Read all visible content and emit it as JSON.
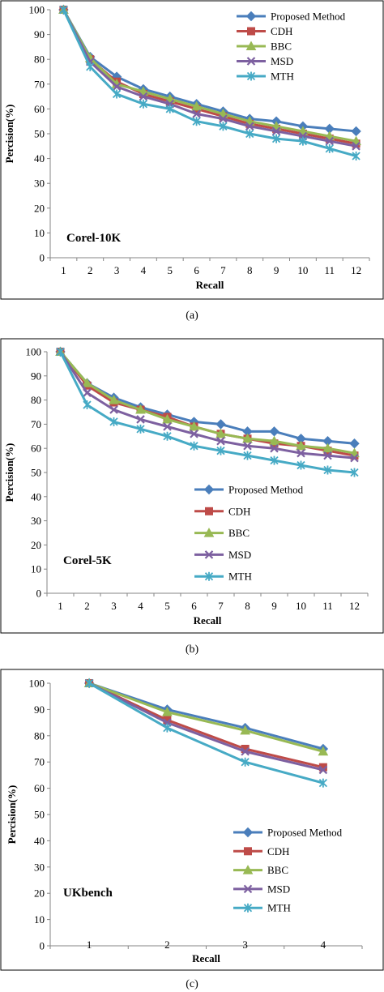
{
  "colors": {
    "Proposed Method": "#4a7ebb",
    "CDH": "#be4b48",
    "BBC": "#98b954",
    "MSD": "#7d60a0",
    "MTH": "#46aac5"
  },
  "markers": {
    "Proposed Method": "diamond",
    "CDH": "square",
    "BBC": "triangle",
    "MSD": "x-mark",
    "MTH": "asterisk"
  },
  "chart_data": [
    {
      "type": "line",
      "caption": "(a)",
      "inside_label": "Corel-10K",
      "xlabel": "Recall",
      "ylabel": "Percision(%)",
      "ylim": [
        0,
        100
      ],
      "yticks": [
        0,
        10,
        20,
        30,
        40,
        50,
        60,
        70,
        80,
        90,
        100
      ],
      "x": [
        1,
        2,
        3,
        4,
        5,
        6,
        7,
        8,
        9,
        10,
        11,
        12
      ],
      "legend_position": "top-right",
      "series": [
        {
          "name": "Proposed Method",
          "values": [
            100,
            81,
            73,
            68,
            65,
            62,
            59,
            56,
            55,
            53,
            52,
            51
          ]
        },
        {
          "name": "CDH",
          "values": [
            100,
            80,
            71,
            66,
            63,
            60,
            57,
            54,
            52,
            50,
            48,
            46
          ]
        },
        {
          "name": "BBC",
          "values": [
            100,
            80.5,
            70,
            67,
            64,
            61,
            58,
            55,
            53,
            51,
            49,
            47
          ]
        },
        {
          "name": "MSD",
          "values": [
            100,
            79,
            69,
            65,
            62,
            58,
            56,
            53,
            51,
            49,
            47,
            45
          ]
        },
        {
          "name": "MTH",
          "values": [
            100,
            77,
            66,
            62,
            60,
            55,
            53,
            50,
            48,
            47,
            44,
            41
          ]
        }
      ]
    },
    {
      "type": "line",
      "caption": "(b)",
      "inside_label": "Corel-5K",
      "xlabel": "Recall",
      "ylabel": "Percision(%)",
      "ylim": [
        0,
        100
      ],
      "yticks": [
        0,
        10,
        20,
        30,
        40,
        50,
        60,
        70,
        80,
        90,
        100
      ],
      "x": [
        1,
        2,
        3,
        4,
        5,
        6,
        7,
        8,
        9,
        10,
        11,
        12
      ],
      "legend_position": "bottom-right",
      "series": [
        {
          "name": "Proposed Method",
          "values": [
            100,
            87,
            81,
            77,
            74,
            71,
            70,
            67,
            67,
            64,
            63,
            62
          ]
        },
        {
          "name": "CDH",
          "values": [
            100,
            86,
            79,
            76,
            73,
            69,
            66,
            64,
            62,
            61,
            59,
            57
          ]
        },
        {
          "name": "BBC",
          "values": [
            100,
            87,
            80,
            76,
            72,
            69,
            66,
            64,
            63,
            61,
            60,
            58
          ]
        },
        {
          "name": "MSD",
          "values": [
            100,
            83,
            76,
            72,
            69,
            66,
            63,
            61,
            60,
            58,
            57,
            56
          ]
        },
        {
          "name": "MTH",
          "values": [
            100,
            78,
            71,
            68,
            65,
            61,
            59,
            57,
            55,
            53,
            51,
            50
          ]
        }
      ]
    },
    {
      "type": "line",
      "caption": "(c)",
      "inside_label": "UKbench",
      "xlabel": "Recall",
      "ylabel": "Percision(%)",
      "ylim": [
        0,
        100
      ],
      "yticks": [
        0,
        10,
        20,
        30,
        40,
        50,
        60,
        70,
        80,
        90,
        100
      ],
      "x": [
        1,
        2,
        3,
        4
      ],
      "legend_position": "bottom-right",
      "series": [
        {
          "name": "Proposed Method",
          "values": [
            100,
            90,
            83,
            75
          ]
        },
        {
          "name": "CDH",
          "values": [
            100,
            86,
            75,
            68
          ]
        },
        {
          "name": "BBC",
          "values": [
            100,
            89,
            82,
            74
          ]
        },
        {
          "name": "MSD",
          "values": [
            100,
            85,
            74,
            67
          ]
        },
        {
          "name": "MTH",
          "values": [
            100,
            83,
            70,
            62
          ]
        }
      ]
    }
  ]
}
